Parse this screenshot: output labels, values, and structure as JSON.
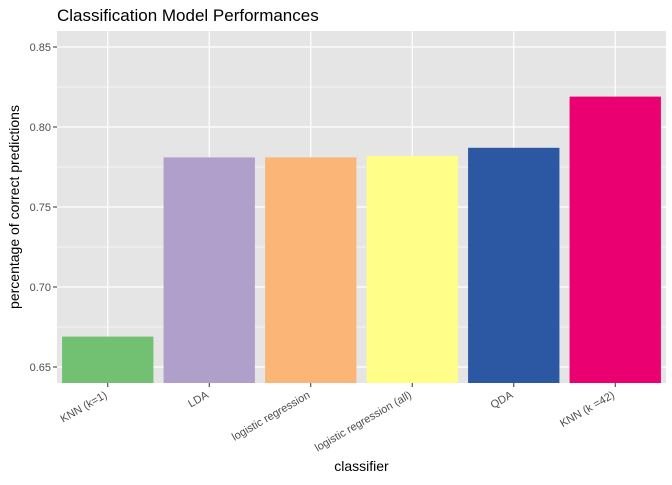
{
  "chart_data": {
    "type": "bar",
    "title": "Classification Model Performances",
    "xlabel": "classifier",
    "ylabel": "percentage of correct predictions",
    "categories": [
      "KNN (k=1)",
      "LDA",
      "logistic regression",
      "logistic regression (all)",
      "QDA",
      "KNN (k =42)"
    ],
    "values": [
      0.669,
      0.781,
      0.781,
      0.782,
      0.787,
      0.819
    ],
    "colors": [
      "#72C172",
      "#B19FCB",
      "#FAB577",
      "#FEFE88",
      "#2C57A3",
      "#EB0072"
    ],
    "ylim": [
      0.64,
      0.86
    ],
    "yticks": [
      "0.65",
      "0.70",
      "0.75",
      "0.80",
      "0.85"
    ],
    "ytick_values": [
      0.65,
      0.7,
      0.75,
      0.8,
      0.85
    ],
    "grid": true,
    "background": "#e5e5e5",
    "grid_color": "#ffffff"
  }
}
